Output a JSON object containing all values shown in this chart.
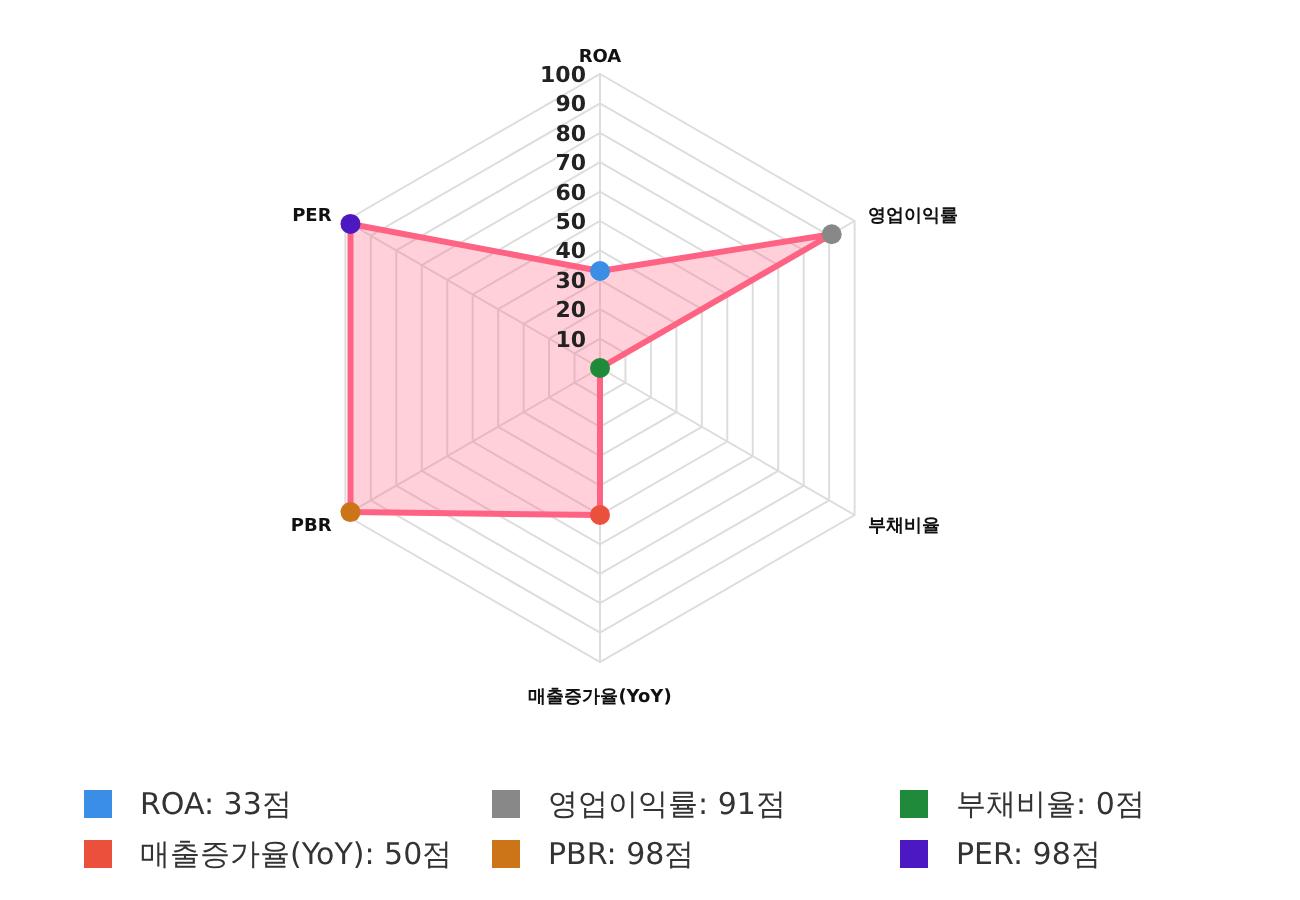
{
  "chart_data": {
    "type": "radar",
    "categories": [
      "ROA",
      "영업이익률",
      "부채비율",
      "매출증가율(YoY)",
      "PBR",
      "PER"
    ],
    "series": [
      {
        "color": "#ff6384",
        "values": [
          33,
          91,
          0,
          50,
          98,
          98
        ],
        "colors": [
          "#3a8ee6",
          "#888888",
          "#1e8a3a",
          "#ea503c",
          "#cc7418",
          "#4b18c2"
        ]
      }
    ],
    "ylim": [
      0,
      100
    ],
    "yticks": [
      10,
      20,
      30,
      40,
      50,
      60,
      70,
      80,
      90,
      100
    ],
    "grid": true,
    "marker": "circle",
    "annotations": [
      "ROA: 33점",
      "영업이익률: 91점",
      "부채비율: 0점",
      "매출증가율(YoY): 50점",
      "PBR: 98점",
      "PER: 98점"
    ]
  }
}
